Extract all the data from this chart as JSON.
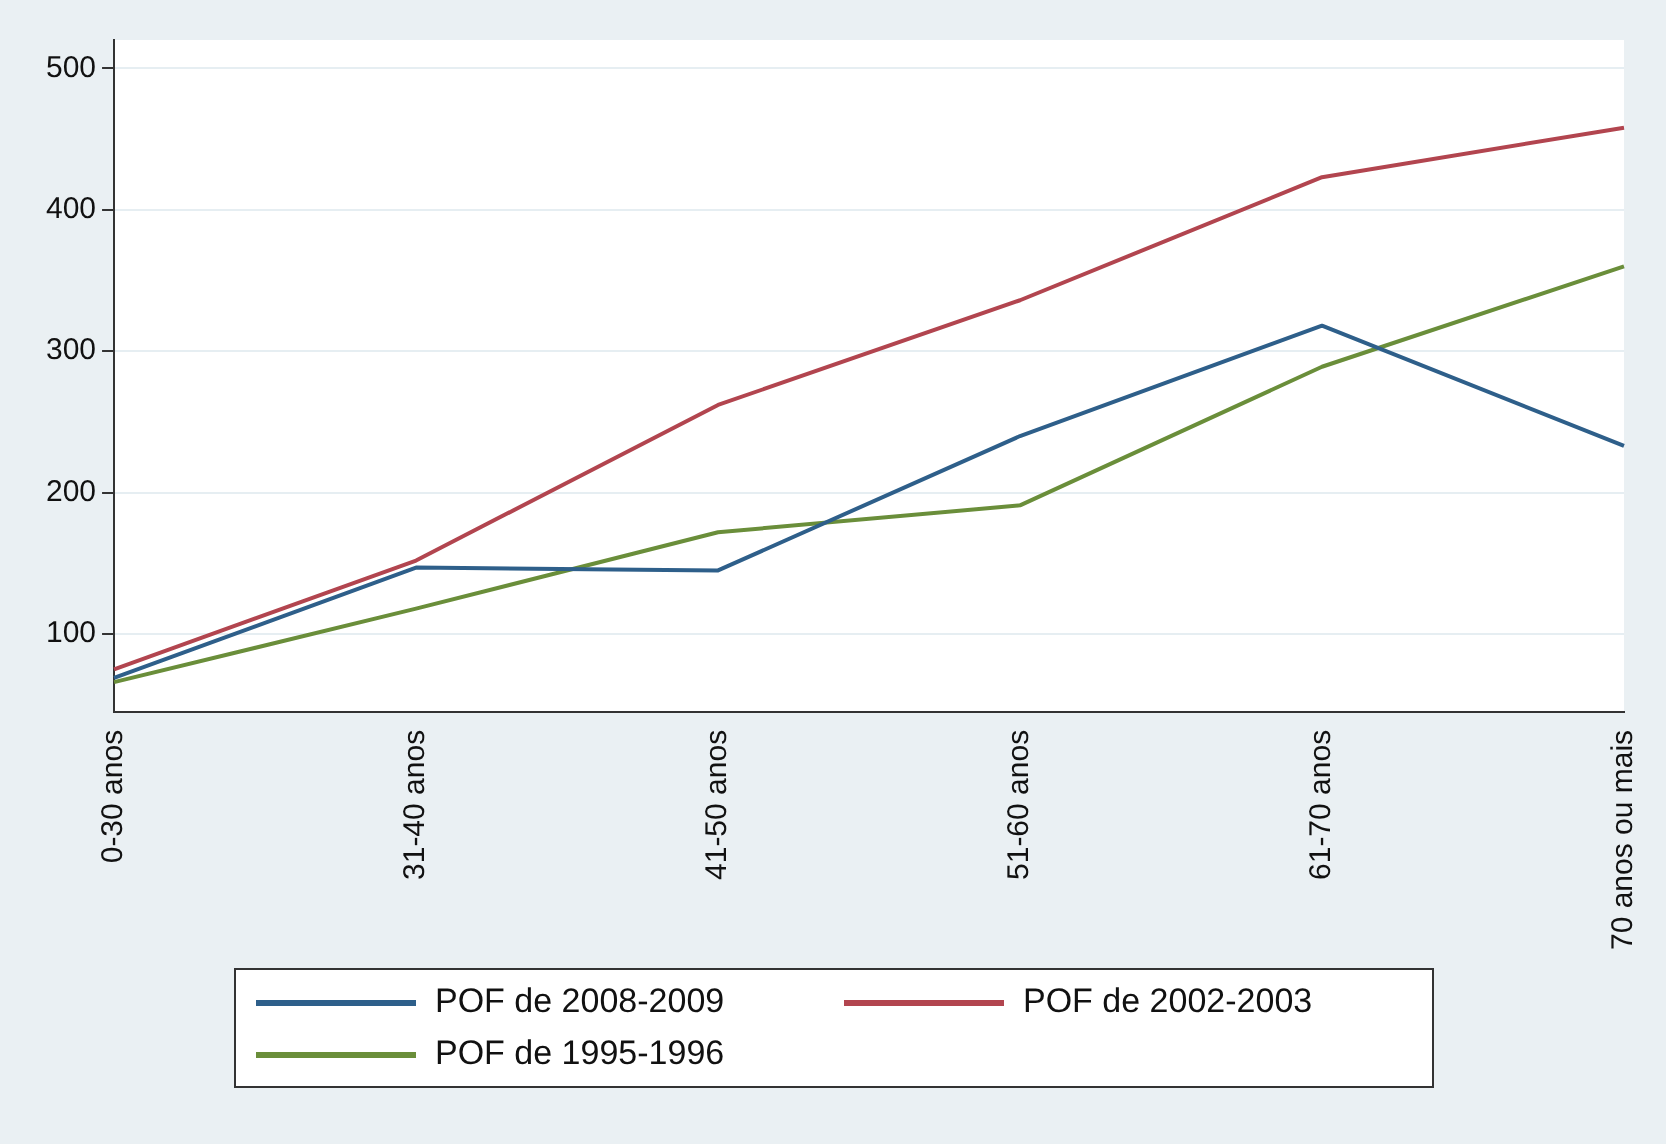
{
  "chart_data": {
    "type": "line",
    "categories": [
      "0-30 anos",
      "31-40 anos",
      "41-50 anos",
      "51-60 anos",
      "61-70 anos",
      "70 anos ou mais"
    ],
    "series": [
      {
        "name": "POF de 2008-2009",
        "color": "#2e5f8a",
        "values": [
          69,
          147,
          145,
          240,
          318,
          233
        ]
      },
      {
        "name": "POF de 2002-2003",
        "color": "#b2454f",
        "values": [
          75,
          152,
          262,
          336,
          423,
          458
        ]
      },
      {
        "name": "POF de 1995-1996",
        "color": "#6a8e3a",
        "values": [
          66,
          118,
          172,
          191,
          289,
          360
        ]
      }
    ],
    "ylim": [
      45,
      520
    ],
    "yticks": [
      100,
      200,
      300,
      400,
      500
    ],
    "grid": "y",
    "legend": "bottom",
    "marker": "none",
    "line_style": "solid"
  }
}
